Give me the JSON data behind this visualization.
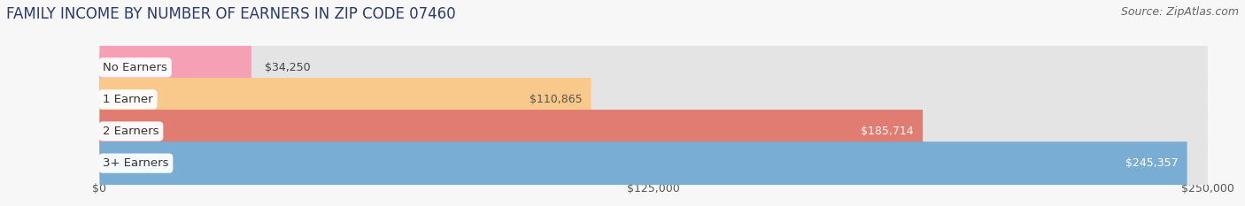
{
  "title": "FAMILY INCOME BY NUMBER OF EARNERS IN ZIP CODE 07460",
  "source": "Source: ZipAtlas.com",
  "categories": [
    "No Earners",
    "1 Earner",
    "2 Earners",
    "3+ Earners"
  ],
  "values": [
    34250,
    110865,
    185714,
    245357
  ],
  "bar_colors": [
    "#f5a0b4",
    "#f8c98a",
    "#e07c72",
    "#7aadd4"
  ],
  "label_colors": [
    "#555555",
    "#555555",
    "#ffffff",
    "#ffffff"
  ],
  "x_max": 250000,
  "x_ticks": [
    0,
    125000,
    250000
  ],
  "x_tick_labels": [
    "$0",
    "$125,000",
    "$250,000"
  ],
  "background_color": "#f7f7f7",
  "bar_background": "#e4e4e4",
  "title_fontsize": 12,
  "source_fontsize": 9,
  "label_fontsize": 9,
  "category_fontsize": 9.5
}
